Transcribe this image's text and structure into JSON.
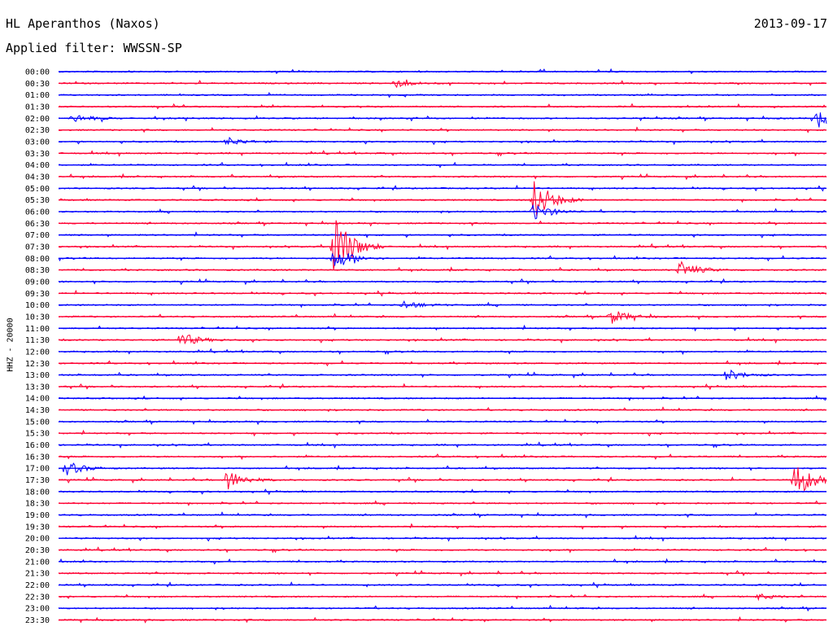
{
  "header": {
    "station": "HL Aperanthos (Naxos)",
    "date": "2013-09-17",
    "filter": "Applied filter: WWSSN-SP"
  },
  "channel_label": "HHZ - 20000",
  "colors": {
    "blue": "#0000ff",
    "red": "#ff0033"
  },
  "chart_data": {
    "type": "line",
    "title": "HL Aperanthos (Naxos)",
    "ylabel": "HHZ - 20000",
    "xlabel": "",
    "grid": false,
    "trace_colors": [
      "blue",
      "red"
    ],
    "rows": [
      "00:00",
      "00:30",
      "01:00",
      "01:30",
      "02:00",
      "02:30",
      "03:00",
      "03:30",
      "04:00",
      "04:30",
      "05:00",
      "05:30",
      "06:00",
      "06:30",
      "07:00",
      "07:30",
      "08:00",
      "08:30",
      "09:00",
      "09:30",
      "10:00",
      "10:30",
      "11:00",
      "11:30",
      "12:00",
      "12:30",
      "13:00",
      "13:30",
      "14:00",
      "14:30",
      "15:00",
      "15:30",
      "16:00",
      "16:30",
      "17:00",
      "17:30",
      "18:00",
      "18:30",
      "19:00",
      "19:30",
      "20:00",
      "20:30",
      "21:00",
      "21:30",
      "22:00",
      "22:30",
      "23:00",
      "23:30"
    ],
    "events": [
      {
        "row": "00:30",
        "t": 0.44,
        "amp": 0.25
      },
      {
        "row": "02:00",
        "t": 0.02,
        "amp": 0.3
      },
      {
        "row": "02:00",
        "t": 0.99,
        "amp": 0.6
      },
      {
        "row": "03:00",
        "t": 0.22,
        "amp": 0.3
      },
      {
        "row": "05:30",
        "t": 0.62,
        "amp": 1.5
      },
      {
        "row": "06:00",
        "t": 0.62,
        "amp": 0.6
      },
      {
        "row": "07:30",
        "t": 0.36,
        "amp": 2.5
      },
      {
        "row": "08:00",
        "t": 0.36,
        "amp": 0.8
      },
      {
        "row": "08:30",
        "t": 0.81,
        "amp": 0.6
      },
      {
        "row": "10:00",
        "t": 0.45,
        "amp": 0.3
      },
      {
        "row": "10:30",
        "t": 0.72,
        "amp": 0.5
      },
      {
        "row": "11:30",
        "t": 0.16,
        "amp": 0.5
      },
      {
        "row": "13:00",
        "t": 0.87,
        "amp": 0.4
      },
      {
        "row": "17:00",
        "t": 0.01,
        "amp": 0.5
      },
      {
        "row": "17:30",
        "t": 0.22,
        "amp": 0.7
      },
      {
        "row": "17:30",
        "t": 0.96,
        "amp": 1.3
      },
      {
        "row": "22:30",
        "t": 0.91,
        "amp": 0.2
      }
    ]
  }
}
